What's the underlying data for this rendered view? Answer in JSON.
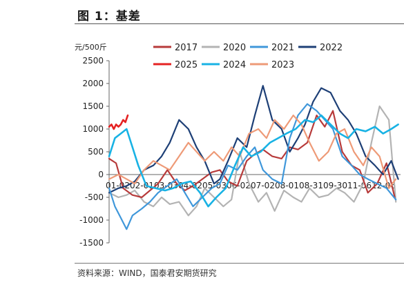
{
  "figure": {
    "title": "图 1：基差",
    "source": "资料来源：WIND，国泰君安期货研究"
  },
  "chart_data": {
    "type": "line",
    "ylabel": "元/500斤",
    "ylim": [
      -1500,
      2500
    ],
    "yticks": [
      2500,
      2000,
      1500,
      1000,
      500,
      0,
      -500,
      -1000,
      -1500
    ],
    "x_ticklabels_text": "01-0202-0103-0304-0205-0306-0207-0208-0108-3109-3011-0612-06",
    "xlim": [
      0,
      250
    ],
    "legend_position": "top",
    "grid": false,
    "series": [
      {
        "name": "2017",
        "color": "#b73a3a",
        "x": [
          0,
          6,
          12,
          20,
          28,
          35,
          42,
          50,
          58,
          65,
          72,
          80,
          88,
          95,
          102,
          110,
          118,
          125,
          132,
          140,
          148,
          155,
          162,
          170,
          178,
          185,
          192,
          200,
          208,
          215,
          222,
          230,
          238,
          245
        ],
        "y": [
          350,
          250,
          -300,
          -450,
          -500,
          -350,
          -200,
          100,
          -200,
          -350,
          -250,
          -100,
          50,
          100,
          -150,
          -250,
          300,
          450,
          550,
          400,
          350,
          600,
          550,
          700,
          1300,
          1050,
          1400,
          500,
          200,
          100,
          -400,
          -200,
          250,
          -500
        ]
      },
      {
        "name": "2020",
        "color": "#b3b3b3",
        "x": [
          0,
          8,
          15,
          22,
          30,
          38,
          45,
          52,
          60,
          68,
          75,
          82,
          90,
          98,
          105,
          112,
          120,
          128,
          135,
          142,
          150,
          158,
          165,
          172,
          180,
          188,
          195,
          202,
          210,
          218,
          225,
          232,
          240,
          246
        ],
        "y": [
          -400,
          -500,
          -450,
          -350,
          -600,
          -700,
          -500,
          -650,
          -600,
          -900,
          -700,
          -300,
          -500,
          -700,
          -550,
          500,
          -200,
          -600,
          -400,
          -800,
          -350,
          -500,
          -600,
          -300,
          -500,
          -450,
          -300,
          -400,
          -600,
          -200,
          700,
          1500,
          1200,
          -600
        ]
      },
      {
        "name": "2021",
        "color": "#3f97da",
        "x": [
          0,
          5,
          10,
          15,
          20,
          28,
          35,
          42,
          50,
          58,
          65,
          72,
          80,
          88,
          95,
          102,
          110,
          118,
          125,
          132,
          140,
          148,
          155,
          162,
          170,
          178,
          185,
          192,
          200,
          208,
          215,
          222,
          230,
          238,
          246
        ],
        "y": [
          -300,
          -700,
          -950,
          -1200,
          -900,
          -750,
          -600,
          -400,
          -250,
          -100,
          -400,
          -700,
          -500,
          -300,
          -200,
          200,
          100,
          400,
          600,
          100,
          -100,
          -200,
          800,
          1300,
          1550,
          1400,
          1200,
          1000,
          400,
          200,
          0,
          -100,
          -200,
          -300,
          -550
        ]
      },
      {
        "name": "2022",
        "color": "#1d3f76",
        "x": [
          0,
          8,
          15,
          22,
          30,
          38,
          45,
          52,
          60,
          68,
          75,
          82,
          90,
          95,
          102,
          110,
          118,
          125,
          132,
          140,
          148,
          155,
          162,
          168,
          175,
          182,
          190,
          198,
          205,
          212,
          220,
          228,
          235,
          242,
          248
        ],
        "y": [
          -400,
          -300,
          -250,
          -150,
          100,
          200,
          400,
          700,
          1200,
          1000,
          600,
          300,
          -200,
          -100,
          300,
          800,
          600,
          1300,
          1950,
          1200,
          1000,
          500,
          800,
          1100,
          1600,
          1900,
          1800,
          1400,
          1200,
          900,
          400,
          200,
          0,
          300,
          -100
        ]
      },
      {
        "name": "2025",
        "color": "#e52222",
        "x": [
          0,
          2,
          4,
          6,
          8,
          10,
          12,
          14,
          16
        ],
        "y": [
          1050,
          1100,
          1000,
          1100,
          1050,
          1100,
          1200,
          1150,
          1300
        ]
      },
      {
        "name": "2024",
        "color": "#18b2e4",
        "x": [
          0,
          5,
          10,
          15,
          20,
          25,
          32,
          40,
          48,
          55,
          62,
          70,
          78,
          85,
          92,
          100,
          108,
          115,
          122,
          130,
          138,
          145,
          152,
          160,
          168,
          175,
          182,
          190,
          198,
          205,
          212,
          220,
          228,
          235,
          242,
          248
        ],
        "y": [
          400,
          800,
          900,
          1000,
          600,
          200,
          -250,
          -300,
          -350,
          -300,
          -200,
          -150,
          -400,
          -700,
          -500,
          -300,
          200,
          600,
          400,
          500,
          700,
          800,
          900,
          1000,
          1200,
          1150,
          1300,
          1100,
          900,
          800,
          1000,
          950,
          1050,
          900,
          1000,
          1100
        ]
      },
      {
        "name": "2023",
        "color": "#ee9a77",
        "x": [
          0,
          8,
          15,
          22,
          30,
          38,
          45,
          52,
          60,
          68,
          75,
          82,
          90,
          98,
          105,
          112,
          120,
          128,
          135,
          142,
          150,
          158,
          165,
          172,
          180,
          188,
          195,
          202,
          210,
          218,
          225,
          232,
          240,
          246
        ],
        "y": [
          -100,
          0,
          -100,
          -200,
          100,
          300,
          200,
          100,
          400,
          700,
          500,
          300,
          500,
          300,
          600,
          400,
          900,
          1000,
          800,
          1200,
          1000,
          1300,
          1100,
          700,
          300,
          500,
          900,
          1000,
          500,
          200,
          600,
          400,
          -300,
          -100
        ]
      }
    ]
  }
}
